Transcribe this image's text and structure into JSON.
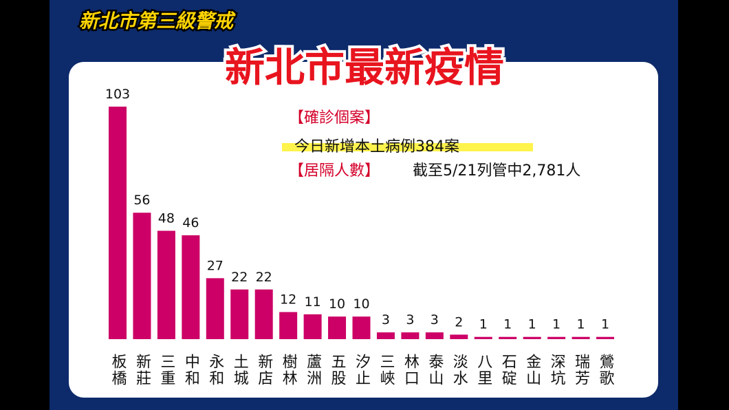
{
  "header": {
    "alert_title": "新北市第三級警戒",
    "title": "新北市最新疫情"
  },
  "notes": {
    "confirmed_label": "【確診個案】",
    "confirmed_text": "今日新增本土病例384案",
    "quarantine_label": "【居隔人數】",
    "quarantine_text": "截至5/21列管中2,781人"
  },
  "chart_data": {
    "type": "bar",
    "color": "#cc0066",
    "categories": [
      "板橋",
      "新莊",
      "三重",
      "中和",
      "永和",
      "土城",
      "新店",
      "樹林",
      "蘆洲",
      "五股",
      "汐止",
      "三峽",
      "林口",
      "泰山",
      "淡水",
      "八里",
      "石碇",
      "金山",
      "深坑",
      "瑞芳",
      "鶯歌"
    ],
    "values": [
      103,
      56,
      48,
      46,
      27,
      22,
      22,
      12,
      11,
      10,
      10,
      3,
      3,
      3,
      2,
      1,
      1,
      1,
      1,
      1,
      1
    ]
  }
}
